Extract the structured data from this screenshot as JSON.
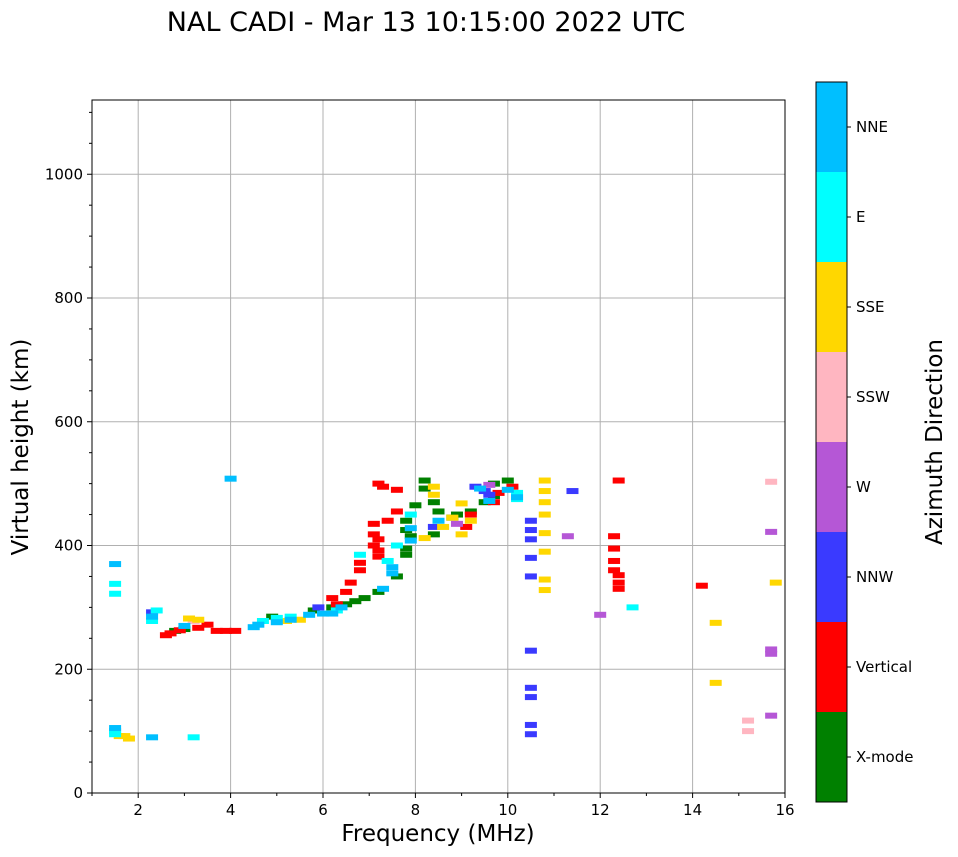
{
  "chart_data": {
    "type": "scatter",
    "title": "NAL CADI - Mar 13 10:15:00 2022 UTC",
    "xlabel": "Frequency (MHz)",
    "ylabel": "Virtual height (km)",
    "xlim": [
      1,
      16
    ],
    "ylim": [
      0,
      1120
    ],
    "xticks": [
      2,
      4,
      6,
      8,
      10,
      12,
      14,
      16
    ],
    "yticks": [
      0,
      200,
      400,
      600,
      800,
      1000
    ],
    "grid": true,
    "colorbar": {
      "label": "Azimuth Direction",
      "categories": [
        {
          "name": "X-mode",
          "color": "#008000"
        },
        {
          "name": "Vertical",
          "color": "#ff0000"
        },
        {
          "name": "NNW",
          "color": "#3a3aff"
        },
        {
          "name": "W",
          "color": "#b557d6"
        },
        {
          "name": "SSW",
          "color": "#ffb6c1"
        },
        {
          "name": "SSE",
          "color": "#ffd700"
        },
        {
          "name": "E",
          "color": "#00ffff"
        },
        {
          "name": "NNE",
          "color": "#00bfff"
        }
      ]
    },
    "series": [
      {
        "name": "X-mode",
        "points": [
          [
            2.8,
            262
          ],
          [
            3.0,
            265
          ],
          [
            4.9,
            285
          ],
          [
            5.8,
            295
          ],
          [
            6.2,
            300
          ],
          [
            6.5,
            305
          ],
          [
            6.7,
            310
          ],
          [
            6.9,
            315
          ],
          [
            7.2,
            325
          ],
          [
            7.6,
            350
          ],
          [
            7.8,
            385
          ],
          [
            7.8,
            395
          ],
          [
            7.9,
            415
          ],
          [
            7.8,
            425
          ],
          [
            7.8,
            440
          ],
          [
            8.0,
            465
          ],
          [
            8.2,
            492
          ],
          [
            8.2,
            505
          ],
          [
            8.4,
            470
          ],
          [
            8.4,
            418
          ],
          [
            8.5,
            455
          ],
          [
            8.8,
            445
          ],
          [
            8.9,
            450
          ],
          [
            9.2,
            455
          ],
          [
            9.5,
            470
          ],
          [
            9.7,
            480
          ],
          [
            9.7,
            500
          ],
          [
            10.0,
            505
          ]
        ]
      },
      {
        "name": "Vertical",
        "points": [
          [
            2.6,
            255
          ],
          [
            2.7,
            258
          ],
          [
            2.9,
            263
          ],
          [
            3.3,
            267
          ],
          [
            3.5,
            272
          ],
          [
            3.7,
            262
          ],
          [
            3.9,
            262
          ],
          [
            4.1,
            262
          ],
          [
            6.3,
            305
          ],
          [
            6.2,
            315
          ],
          [
            6.5,
            325
          ],
          [
            6.6,
            340
          ],
          [
            6.8,
            360
          ],
          [
            6.8,
            372
          ],
          [
            7.1,
            400
          ],
          [
            7.1,
            418
          ],
          [
            7.2,
            382
          ],
          [
            7.2,
            392
          ],
          [
            7.2,
            410
          ],
          [
            7.1,
            435
          ],
          [
            7.2,
            500
          ],
          [
            7.3,
            495
          ],
          [
            7.4,
            440
          ],
          [
            7.6,
            490
          ],
          [
            7.6,
            455
          ],
          [
            9.1,
            430
          ],
          [
            9.2,
            450
          ],
          [
            9.7,
            470
          ],
          [
            9.8,
            485
          ],
          [
            10.1,
            495
          ],
          [
            12.3,
            360
          ],
          [
            12.3,
            375
          ],
          [
            12.3,
            395
          ],
          [
            12.3,
            415
          ],
          [
            12.4,
            330
          ],
          [
            12.4,
            340
          ],
          [
            12.4,
            352
          ],
          [
            12.4,
            505
          ],
          [
            14.2,
            335
          ]
        ]
      },
      {
        "name": "NNW",
        "points": [
          [
            2.3,
            292
          ],
          [
            5.9,
            300
          ],
          [
            8.4,
            430
          ],
          [
            9.3,
            495
          ],
          [
            9.5,
            488
          ],
          [
            9.6,
            482
          ],
          [
            10.5,
            95
          ],
          [
            10.5,
            110
          ],
          [
            10.5,
            155
          ],
          [
            10.5,
            170
          ],
          [
            10.5,
            230
          ],
          [
            10.5,
            350
          ],
          [
            10.5,
            380
          ],
          [
            10.5,
            410
          ],
          [
            10.5,
            425
          ],
          [
            10.5,
            440
          ],
          [
            11.4,
            488
          ]
        ]
      },
      {
        "name": "W",
        "points": [
          [
            8.9,
            435
          ],
          [
            9.6,
            498
          ],
          [
            11.3,
            415
          ],
          [
            12.0,
            288
          ],
          [
            15.7,
            125
          ],
          [
            15.7,
            225
          ],
          [
            15.7,
            232
          ],
          [
            15.7,
            422
          ]
        ]
      },
      {
        "name": "SSW",
        "points": [
          [
            3.2,
            278
          ],
          [
            15.2,
            100
          ],
          [
            15.2,
            117
          ],
          [
            15.7,
            503
          ]
        ]
      },
      {
        "name": "SSE",
        "points": [
          [
            1.6,
            92
          ],
          [
            1.7,
            92
          ],
          [
            1.8,
            88
          ],
          [
            3.1,
            282
          ],
          [
            3.3,
            280
          ],
          [
            5.2,
            278
          ],
          [
            5.5,
            280
          ],
          [
            8.2,
            412
          ],
          [
            8.4,
            482
          ],
          [
            8.4,
            495
          ],
          [
            8.6,
            430
          ],
          [
            8.8,
            445
          ],
          [
            9.0,
            468
          ],
          [
            9.0,
            418
          ],
          [
            9.2,
            440
          ],
          [
            10.8,
            328
          ],
          [
            10.8,
            345
          ],
          [
            10.8,
            390
          ],
          [
            10.8,
            420
          ],
          [
            10.8,
            450
          ],
          [
            10.8,
            470
          ],
          [
            10.8,
            488
          ],
          [
            10.8,
            505
          ],
          [
            14.5,
            275
          ],
          [
            14.5,
            178
          ],
          [
            15.8,
            340
          ]
        ]
      },
      {
        "name": "E",
        "points": [
          [
            1.5,
            95
          ],
          [
            1.5,
            100
          ],
          [
            1.5,
            338
          ],
          [
            1.5,
            322
          ],
          [
            2.3,
            278
          ],
          [
            2.4,
            295
          ],
          [
            3.2,
            90
          ],
          [
            4.7,
            278
          ],
          [
            5.0,
            283
          ],
          [
            5.3,
            285
          ],
          [
            6.3,
            295
          ],
          [
            6.8,
            385
          ],
          [
            7.4,
            375
          ],
          [
            7.6,
            400
          ],
          [
            7.9,
            450
          ],
          [
            10.2,
            475
          ],
          [
            10.2,
            485
          ],
          [
            12.7,
            300
          ]
        ]
      },
      {
        "name": "NNE",
        "points": [
          [
            1.5,
            105
          ],
          [
            1.5,
            370
          ],
          [
            2.3,
            285
          ],
          [
            2.3,
            90
          ],
          [
            3.0,
            270
          ],
          [
            4.0,
            508
          ],
          [
            4.5,
            268
          ],
          [
            4.6,
            272
          ],
          [
            5.0,
            276
          ],
          [
            5.3,
            280
          ],
          [
            5.7,
            288
          ],
          [
            6.0,
            290
          ],
          [
            6.2,
            290
          ],
          [
            6.4,
            300
          ],
          [
            7.3,
            330
          ],
          [
            7.5,
            355
          ],
          [
            7.5,
            365
          ],
          [
            7.9,
            408
          ],
          [
            7.9,
            428
          ],
          [
            8.5,
            440
          ],
          [
            9.4,
            492
          ],
          [
            9.6,
            472
          ],
          [
            10.0,
            490
          ],
          [
            10.2,
            478
          ]
        ]
      }
    ]
  }
}
